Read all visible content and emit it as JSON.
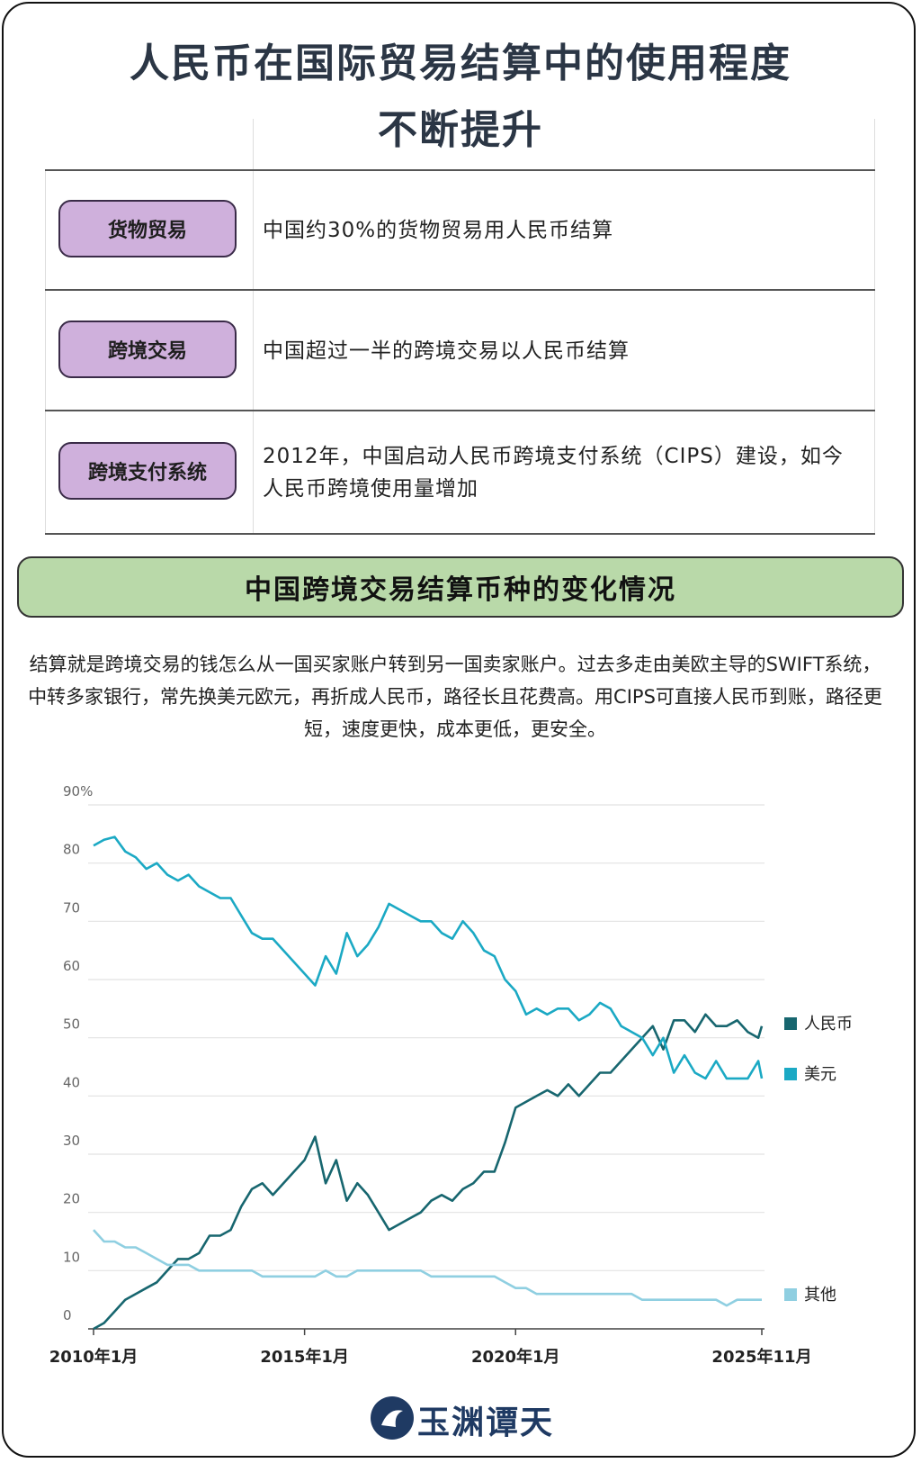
{
  "header": {
    "title_lines": [
      "人民币在国际贸易结算中的使用程度",
      "不断提升"
    ]
  },
  "table": {
    "rows": [
      [
        "货物贸易",
        "中国约30%的货物贸易用人民币结算"
      ],
      [
        "跨境交易",
        "中国超过一半的跨境交易以人民币结算"
      ],
      [
        "跨境支付系统",
        "2012年，中国启动人民币跨境支付系统（CIPS）建设，如今人民币跨境使用量增加"
      ]
    ]
  },
  "section": {
    "title": "中国跨境交易结算币种的变化情况",
    "description": "结算就是跨境交易的钱怎么从一国买家账户转到另一国卖家账户。过去多走由美欧主导的SWIFT系统，中转多家银行，常先换美元欧元，再折成人民币，路径长且花费高。用CIPS可直接人民币到账，路径更短，速度更快，成本更低，更安全。"
  },
  "chart_data": {
    "type": "line",
    "x": [
      "2010-01",
      "2010-04",
      "2010-07",
      "2010-10",
      "2011-01",
      "2011-04",
      "2011-07",
      "2011-10",
      "2012-01",
      "2012-04",
      "2012-07",
      "2012-10",
      "2013-01",
      "2013-04",
      "2013-07",
      "2013-10",
      "2014-01",
      "2014-04",
      "2014-07",
      "2014-10",
      "2015-01",
      "2015-04",
      "2015-07",
      "2015-10",
      "2016-01",
      "2016-04",
      "2016-07",
      "2016-10",
      "2017-01",
      "2017-04",
      "2017-07",
      "2017-10",
      "2018-01",
      "2018-04",
      "2018-07",
      "2018-10",
      "2019-01",
      "2019-04",
      "2019-07",
      "2019-10",
      "2020-01",
      "2020-04",
      "2020-07",
      "2020-10",
      "2021-01",
      "2021-04",
      "2021-07",
      "2021-10",
      "2022-01",
      "2022-04",
      "2022-07",
      "2022-10",
      "2023-01",
      "2023-04",
      "2023-07",
      "2023-10",
      "2024-01",
      "2024-04",
      "2024-07",
      "2024-10",
      "2025-01",
      "2025-04",
      "2025-07",
      "2025-10",
      "2025-11"
    ],
    "series": [
      {
        "name": "人民币",
        "color": "#17666f",
        "values": [
          0,
          1,
          3,
          5,
          6,
          7,
          8,
          10,
          12,
          12,
          13,
          16,
          16,
          17,
          21,
          24,
          25,
          23,
          25,
          27,
          29,
          33,
          25,
          29,
          22,
          25,
          23,
          20,
          17,
          18,
          19,
          20,
          22,
          23,
          22,
          24,
          25,
          27,
          27,
          32,
          38,
          39,
          40,
          41,
          40,
          42,
          40,
          42,
          44,
          44,
          46,
          48,
          50,
          52,
          48,
          53,
          53,
          51,
          54,
          52,
          52,
          53,
          51,
          50,
          52
        ]
      },
      {
        "name": "美元",
        "color": "#1ba9c4",
        "values": [
          83,
          84,
          84.5,
          82,
          81,
          79,
          80,
          78,
          77,
          78,
          76,
          75,
          74,
          74,
          71,
          68,
          67,
          67,
          65,
          63,
          61,
          59,
          64,
          61,
          68,
          64,
          66,
          69,
          73,
          72,
          71,
          70,
          70,
          68,
          67,
          70,
          68,
          65,
          64,
          60,
          58,
          54,
          55,
          54,
          55,
          55,
          53,
          54,
          56,
          55,
          52,
          51,
          50,
          47,
          50,
          44,
          47,
          44,
          43,
          46,
          43,
          43,
          43,
          46,
          43
        ]
      },
      {
        "name": "其他",
        "color": "#8fcfe1",
        "values": [
          17,
          15,
          15,
          14,
          14,
          13,
          12,
          11,
          11,
          11,
          10,
          10,
          10,
          10,
          10,
          10,
          9,
          9,
          9,
          9,
          9,
          9,
          10,
          9,
          9,
          10,
          10,
          10,
          10,
          10,
          10,
          10,
          9,
          9,
          9,
          9,
          9,
          9,
          9,
          8,
          7,
          7,
          6,
          6,
          6,
          6,
          6,
          6,
          6,
          6,
          6,
          6,
          5,
          5,
          5,
          5,
          5,
          5,
          5,
          5,
          4,
          5,
          5,
          5,
          5
        ]
      }
    ],
    "xlim": [
      "2010-01",
      "2025-11"
    ],
    "xticks": [
      {
        "value": "2010-01",
        "label": "2010年1月"
      },
      {
        "value": "2015-01",
        "label": "2015年1月"
      },
      {
        "value": "2020-01",
        "label": "2020年1月"
      },
      {
        "value": "2025-11",
        "label": "2025年11月"
      }
    ],
    "ylim": [
      0,
      90
    ],
    "yticks": [
      0,
      10,
      20,
      30,
      40,
      50,
      60,
      70,
      {
        "value": 90,
        "label": "90%"
      },
      80
    ],
    "grid": true,
    "legend": "right"
  },
  "footer": {
    "logo_text": "玉渊谭天"
  }
}
